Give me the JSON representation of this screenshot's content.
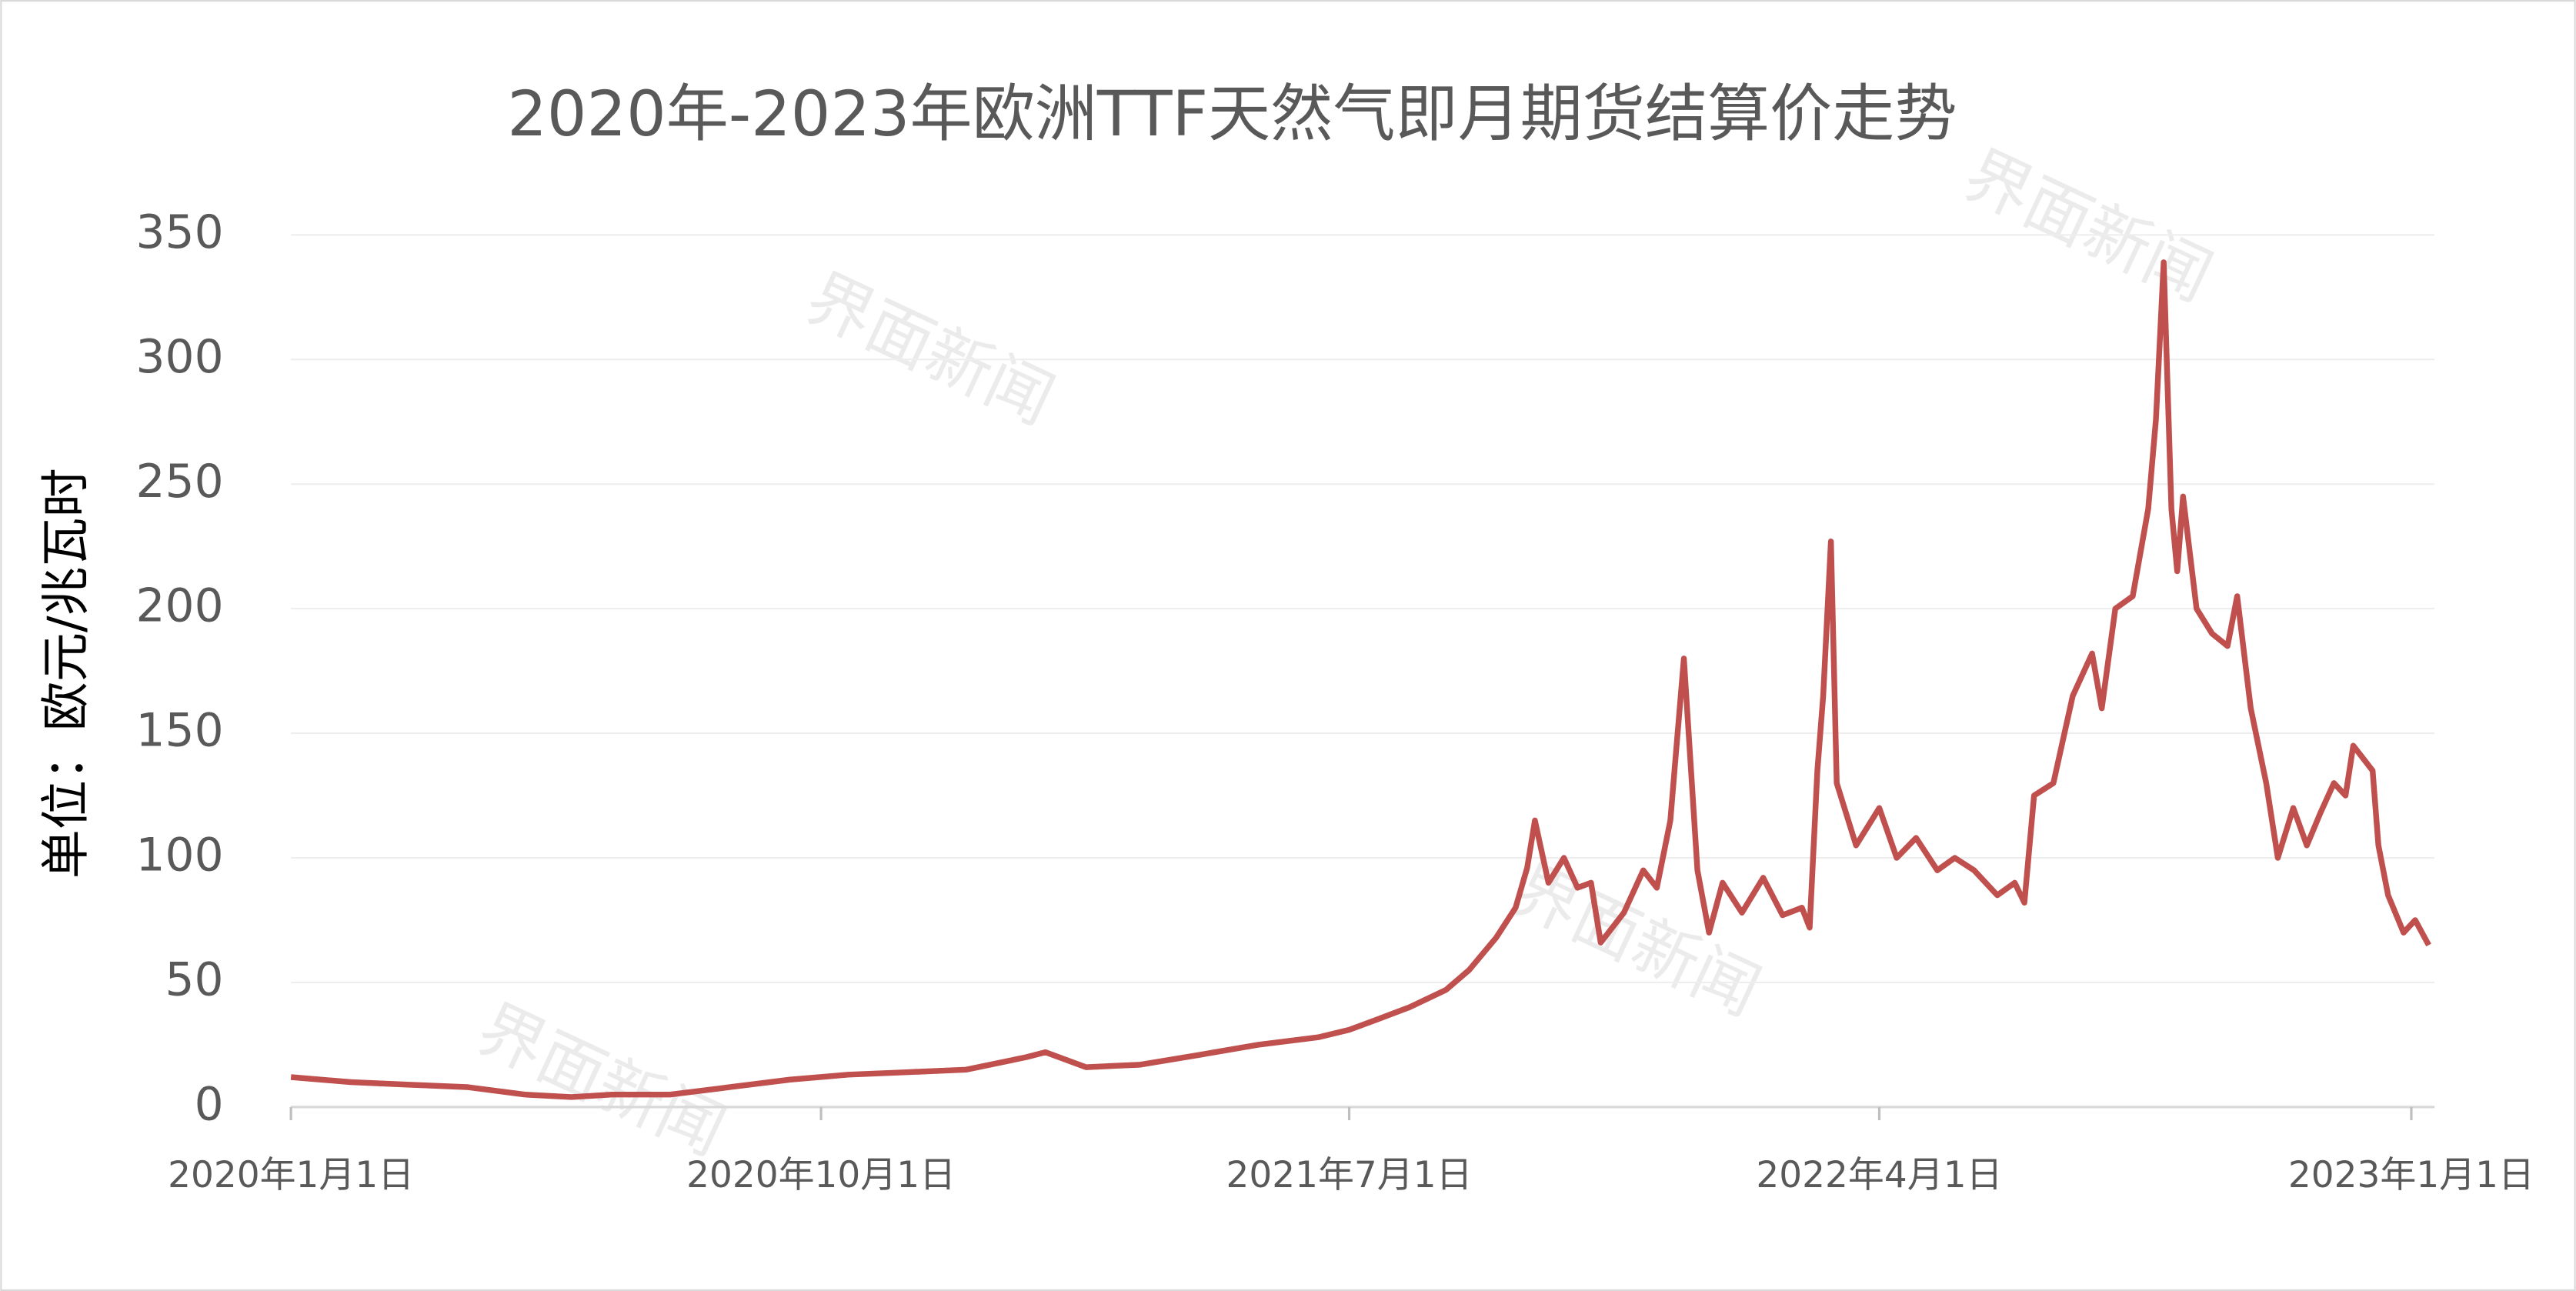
{
  "chart_data": {
    "type": "line",
    "title": "2020年-2023年欧洲TTF天然气即月期货结算价走势",
    "y_label": "单位：欧元/兆瓦时",
    "watermark": "界面新闻",
    "color": "#c0504d",
    "grid": true,
    "xlim": [
      "2020-01-01",
      "2023-01-13"
    ],
    "xticks": [
      {
        "value": "2020-01-01",
        "label": "2020年1月1日"
      },
      {
        "value": "2020-10-01",
        "label": "2020年10月1日"
      },
      {
        "value": "2021-07-01",
        "label": "2021年7月1日"
      },
      {
        "value": "2022-04-01",
        "label": "2022年4月1日"
      },
      {
        "value": "2023-01-01",
        "label": "2023年1月1日"
      }
    ],
    "ylim": [
      0,
      350
    ],
    "yticks": [
      0,
      50,
      100,
      150,
      200,
      250,
      300,
      350
    ],
    "x": [
      "2020-01-01",
      "2020-02-01",
      "2020-03-01",
      "2020-04-01",
      "2020-05-01",
      "2020-05-25",
      "2020-06-15",
      "2020-07-15",
      "2020-08-15",
      "2020-09-15",
      "2020-10-15",
      "2020-11-15",
      "2020-12-15",
      "2021-01-15",
      "2021-01-25",
      "2021-02-15",
      "2021-03-15",
      "2021-04-15",
      "2021-05-15",
      "2021-06-15",
      "2021-07-01",
      "2021-07-15",
      "2021-08-01",
      "2021-08-20",
      "2021-09-01",
      "2021-09-15",
      "2021-09-25",
      "2021-10-01",
      "2021-10-05",
      "2021-10-12",
      "2021-10-20",
      "2021-10-27",
      "2021-11-03",
      "2021-11-08",
      "2021-11-20",
      "2021-11-30",
      "2021-12-07",
      "2021-12-14",
      "2021-12-17",
      "2021-12-21",
      "2021-12-28",
      "2022-01-03",
      "2022-01-10",
      "2022-01-20",
      "2022-01-31",
      "2022-02-10",
      "2022-02-20",
      "2022-02-24",
      "2022-02-28",
      "2022-03-03",
      "2022-03-07",
      "2022-03-10",
      "2022-03-20",
      "2022-04-01",
      "2022-04-10",
      "2022-04-20",
      "2022-05-01",
      "2022-05-10",
      "2022-05-20",
      "2022-06-01",
      "2022-06-10",
      "2022-06-15",
      "2022-06-20",
      "2022-06-30",
      "2022-07-10",
      "2022-07-20",
      "2022-07-25",
      "2022-08-01",
      "2022-08-10",
      "2022-08-18",
      "2022-08-22",
      "2022-08-26",
      "2022-08-30",
      "2022-09-02",
      "2022-09-05",
      "2022-09-12",
      "2022-09-20",
      "2022-09-28",
      "2022-10-03",
      "2022-10-10",
      "2022-10-18",
      "2022-10-24",
      "2022-11-01",
      "2022-11-08",
      "2022-11-15",
      "2022-11-22",
      "2022-11-28",
      "2022-12-02",
      "2022-12-07",
      "2022-12-12",
      "2022-12-15",
      "2022-12-20",
      "2022-12-28",
      "2023-01-03",
      "2023-01-10"
    ],
    "values": [
      12,
      10,
      9,
      8,
      5,
      4,
      5,
      5,
      8,
      11,
      13,
      14,
      15,
      20,
      22,
      16,
      17,
      21,
      25,
      28,
      31,
      35,
      40,
      47,
      55,
      68,
      80,
      96,
      115,
      90,
      100,
      88,
      90,
      66,
      78,
      95,
      88,
      115,
      143,
      180,
      95,
      70,
      90,
      78,
      92,
      77,
      80,
      72,
      135,
      165,
      227,
      130,
      105,
      120,
      100,
      108,
      95,
      100,
      95,
      85,
      90,
      82,
      125,
      130,
      165,
      182,
      160,
      200,
      205,
      240,
      276,
      339,
      240,
      215,
      245,
      200,
      190,
      185,
      205,
      160,
      130,
      100,
      120,
      105,
      118,
      130,
      125,
      145,
      140,
      135,
      105,
      85,
      70,
      75,
      65
    ]
  }
}
